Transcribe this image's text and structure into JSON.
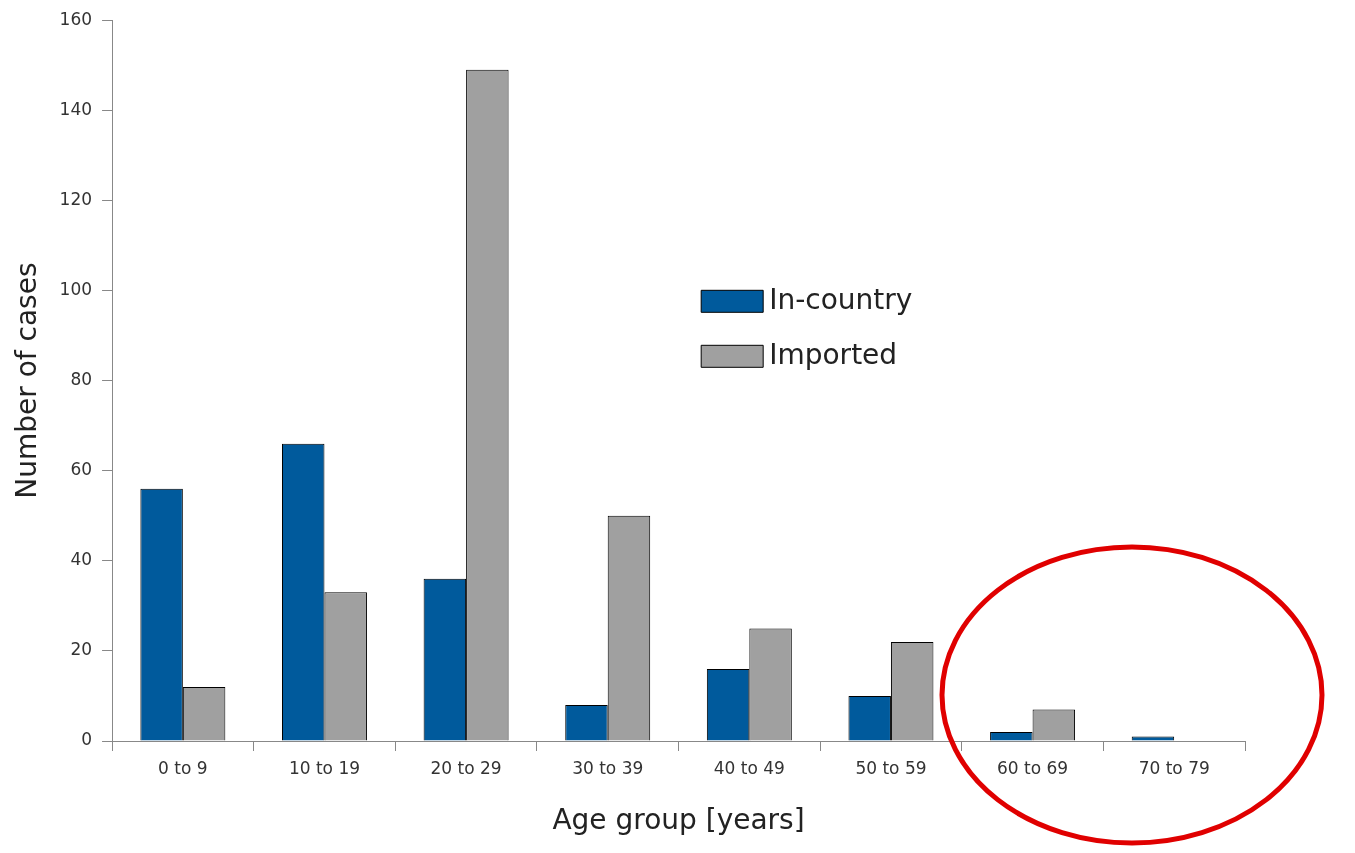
{
  "chart_data": {
    "type": "bar",
    "xlabel": "Age group [years]",
    "ylabel": "Number of cases",
    "categories": [
      "0 to 9",
      "10 to 19",
      "20 to 29",
      "30 to 39",
      "40 to 49",
      "50 to 59",
      "60 to 69",
      "70 to 79"
    ],
    "series": [
      {
        "name": "In-country",
        "color": "#005a9c",
        "values": [
          56,
          66,
          36,
          8,
          16,
          10,
          2,
          1
        ]
      },
      {
        "name": "Imported",
        "color": "#a0a0a0",
        "values": [
          12,
          33,
          149,
          50,
          25,
          22,
          7,
          0
        ]
      }
    ],
    "ylim": [
      0,
      160
    ],
    "yticks": [
      0,
      20,
      40,
      60,
      80,
      100,
      120,
      140,
      160
    ],
    "grid": false,
    "legend": "center"
  }
}
